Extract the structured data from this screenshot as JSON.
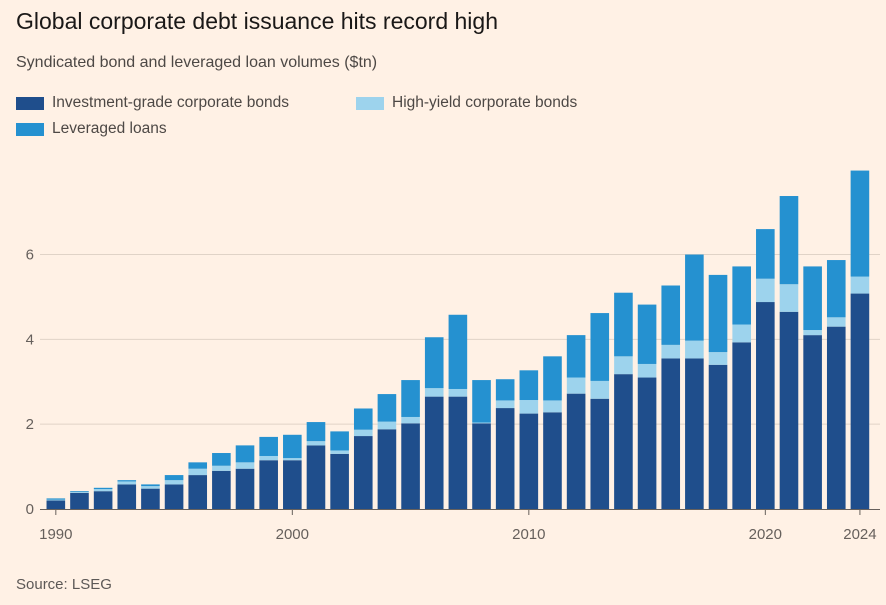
{
  "title": "Global corporate debt issuance hits record high",
  "subtitle": "Syndicated bond and leveraged loan volumes ($tn)",
  "source": "Source: LSEG",
  "colors": {
    "investment_grade": "#1f4e8c",
    "high_yield": "#9dd3ed",
    "leveraged_loans": "#2591d0",
    "axis": "#66605c",
    "grid": "#e0d3c7"
  },
  "legend": [
    {
      "key": "investment_grade",
      "label": "Investment-grade corporate bonds"
    },
    {
      "key": "high_yield",
      "label": "High-yield corporate bonds"
    },
    {
      "key": "leveraged_loans",
      "label": "Leveraged loans"
    }
  ],
  "chart_data": {
    "type": "bar",
    "stacked": true,
    "x": [
      1990,
      1991,
      1992,
      1993,
      1994,
      1995,
      1996,
      1997,
      1998,
      1999,
      2000,
      2001,
      2002,
      2003,
      2004,
      2005,
      2006,
      2007,
      2008,
      2009,
      2010,
      2011,
      2012,
      2013,
      2014,
      2015,
      2016,
      2017,
      2018,
      2019,
      2020,
      2021,
      2022,
      2023,
      2024
    ],
    "series": [
      {
        "name": "Investment-grade corporate bonds",
        "values": [
          0.2,
          0.38,
          0.42,
          0.58,
          0.48,
          0.58,
          0.8,
          0.9,
          0.95,
          1.15,
          1.15,
          1.5,
          1.3,
          1.72,
          1.88,
          2.02,
          2.65,
          2.65,
          2.02,
          2.38,
          2.25,
          2.28,
          2.72,
          2.6,
          3.18,
          3.1,
          3.55,
          3.55,
          3.4,
          3.93,
          4.88,
          4.65,
          4.1,
          4.3,
          5.08
        ]
      },
      {
        "name": "High-yield corporate bonds",
        "values": [
          0.02,
          0.02,
          0.05,
          0.07,
          0.06,
          0.1,
          0.15,
          0.12,
          0.15,
          0.1,
          0.05,
          0.1,
          0.08,
          0.15,
          0.18,
          0.15,
          0.2,
          0.18,
          0.02,
          0.18,
          0.32,
          0.28,
          0.38,
          0.42,
          0.42,
          0.32,
          0.32,
          0.42,
          0.3,
          0.42,
          0.55,
          0.65,
          0.12,
          0.22,
          0.4
        ]
      },
      {
        "name": "Leveraged loans",
        "values": [
          0.03,
          0.02,
          0.03,
          0.03,
          0.04,
          0.12,
          0.15,
          0.3,
          0.4,
          0.45,
          0.55,
          0.45,
          0.45,
          0.5,
          0.65,
          0.87,
          1.2,
          1.75,
          1.0,
          0.5,
          0.7,
          1.04,
          1.0,
          1.6,
          1.5,
          1.4,
          1.4,
          2.03,
          1.82,
          1.37,
          1.17,
          2.08,
          1.5,
          1.35,
          2.5
        ]
      }
    ],
    "ylim": [
      0,
      8.3
    ],
    "yticks": [
      0,
      2,
      4,
      6
    ],
    "xticks": [
      1990,
      2000,
      2010,
      2020,
      2024
    ],
    "grid": true,
    "legend_position": "top-left"
  }
}
